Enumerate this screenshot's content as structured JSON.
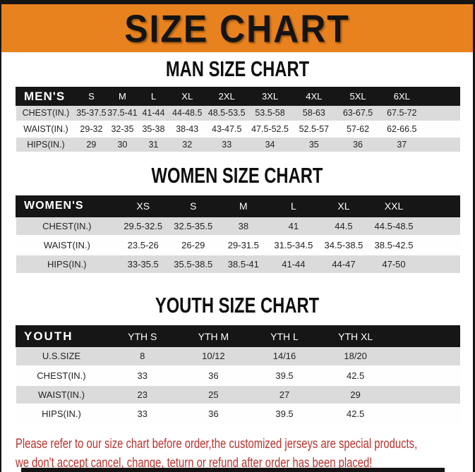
{
  "banner": {
    "title": "SIZE CHART"
  },
  "sections": [
    {
      "heading": "MAN SIZE CHART",
      "table": {
        "header": [
          "MEN'S",
          "S",
          "M",
          "L",
          "XL",
          "2XL",
          "3XL",
          "4XL",
          "5XL",
          "6XL"
        ],
        "rows": [
          [
            "CHEST(IN.)",
            "35-37.5",
            "37.5-41",
            "41-44",
            "44-48.5",
            "48.5-53.5",
            "53.5-58",
            "58-63",
            "63-67.5",
            "67.5-72"
          ],
          [
            "WAIST(IN.)",
            "29-32",
            "32-35",
            "35-38",
            "38-43",
            "43-47.5",
            "47.5-52.5",
            "52.5-57",
            "57-62",
            "62-66.5"
          ],
          [
            "HIPS(IN.)",
            "29",
            "30",
            "31",
            "32",
            "33",
            "34",
            "35",
            "36",
            "37"
          ]
        ]
      }
    },
    {
      "heading": "WOMEN SIZE CHART",
      "table": {
        "header": [
          "WOMEN'S",
          "XS",
          "S",
          "M",
          "L",
          "XL",
          "XXL"
        ],
        "rows": [
          [
            "CHEST(IN.)",
            "29.5-32.5",
            "32.5-35.5",
            "38",
            "41",
            "44.5",
            "44.5-48.5"
          ],
          [
            "WAIST(IN.)",
            "23.5-26",
            "26-29",
            "29-31.5",
            "31.5-34.5",
            "34.5-38.5",
            "38.5-42.5"
          ],
          [
            "HIPS(IN.)",
            "33-35.5",
            "35.5-38.5",
            "38.5-41",
            "41-44",
            "44-47",
            "47-50"
          ]
        ]
      }
    },
    {
      "heading": "YOUTH SIZE CHART",
      "table": {
        "header": [
          "YOUTH",
          "YTH S",
          "YTH M",
          "YTH L",
          "YTH XL"
        ],
        "rows": [
          [
            "U.S.SIZE",
            "8",
            "10/12",
            "14/16",
            "18/20"
          ],
          [
            "CHEST(IN.)",
            "33",
            "36",
            "39.5",
            "42.5"
          ],
          [
            "WAIST(IN.)",
            "23",
            "25",
            "27",
            "29"
          ],
          [
            "HIPS(IN.)",
            "33",
            "36",
            "39.5",
            "42.5"
          ]
        ]
      }
    }
  ],
  "note": {
    "line1": "Please refer to our size chart before order,the customized jerseys are special products,",
    "line2": "we don't accept cancel, change, teturn or refund after order has been placed!"
  },
  "colors": {
    "banner_orange": "#E8821E",
    "table_header_black": "#161616",
    "stripe_gray": "#DBDBDB",
    "note_red": "#B5342F"
  }
}
